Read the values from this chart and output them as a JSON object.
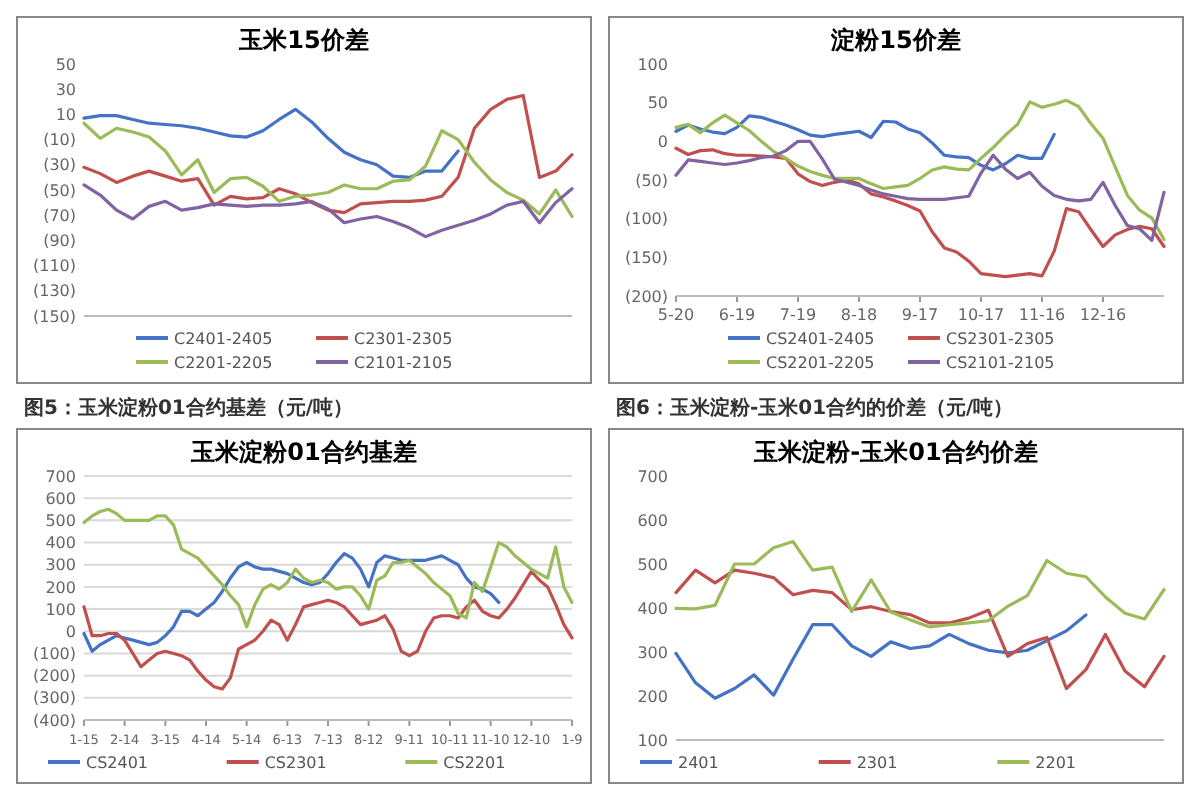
{
  "chart_data": [
    {
      "type": "line",
      "title": "玉米15价差",
      "categories": [
        null,
        null,
        null,
        null,
        null,
        null,
        null,
        null,
        null,
        null,
        null,
        null,
        null,
        null,
        null,
        null,
        null,
        null,
        null,
        null,
        null,
        null,
        null,
        null,
        null,
        null,
        null,
        null,
        null,
        null,
        null
      ],
      "ylim": [
        -150,
        50
      ],
      "tick_labels": "y",
      "legend": "bottom",
      "grid": false,
      "yticks": [
        50,
        30,
        10,
        {
          "value": -10,
          "label": "(10)"
        },
        {
          "value": -30,
          "label": "(30)"
        },
        {
          "value": -50,
          "label": "(50)"
        },
        {
          "value": -70,
          "label": "(70)"
        },
        {
          "value": -90,
          "label": "(90)"
        },
        {
          "value": -110,
          "label": "(110)"
        },
        {
          "value": -130,
          "label": "(130)"
        },
        {
          "value": -150,
          "label": "(150)"
        }
      ],
      "series": [
        {
          "name": "C2401-2405",
          "color": "#4472c4",
          "values": [
            7,
            9,
            9,
            6,
            3,
            2,
            1,
            -1,
            -4,
            -7,
            -8,
            -3,
            6,
            14,
            4,
            -9,
            -20,
            -26,
            -30,
            -39,
            -40,
            -35,
            -35,
            -19,
            null,
            null,
            null,
            null,
            null,
            null,
            null
          ]
        },
        {
          "name": "C2301-2305",
          "color": "#c0504d",
          "values": [
            -32,
            -37,
            -44,
            -39,
            -35,
            -39,
            -43,
            -41,
            -62,
            -55,
            -57,
            -56,
            -49,
            -53,
            -60,
            -66,
            -68,
            -61,
            -60,
            -59,
            -59,
            -58,
            -55,
            -40,
            -1,
            14,
            22,
            25,
            -40,
            -35,
            -22
          ]
        },
        {
          "name": "C2201-2205",
          "color": "#9bbb59",
          "values": [
            3,
            -9,
            -1,
            -4,
            -8,
            -19,
            -38,
            -26,
            -52,
            -41,
            -40,
            -47,
            -59,
            -55,
            -54,
            -52,
            -46,
            -49,
            -49,
            -43,
            -42,
            -31,
            -3,
            -10,
            -28,
            -42,
            -52,
            -58,
            -69,
            -50,
            -71
          ]
        },
        {
          "name": "C2101-2105",
          "color": "#8064a2",
          "values": [
            -46,
            -54,
            -66,
            -73,
            -63,
            -59,
            -66,
            -64,
            -61,
            -62,
            -63,
            -62,
            -62,
            -61,
            -59,
            -65,
            -76,
            -73,
            -71,
            -75,
            -80,
            -87,
            -82,
            -78,
            -74,
            -69,
            -62,
            -59,
            -76,
            -60,
            -49
          ]
        }
      ]
    },
    {
      "type": "line",
      "title": "淀粉15价差",
      "categories": [
        "5-20",
        null,
        null,
        null,
        null,
        "6-19",
        null,
        null,
        null,
        null,
        "7-19",
        null,
        null,
        null,
        null,
        "8-18",
        null,
        null,
        null,
        null,
        "9-17",
        null,
        null,
        null,
        null,
        "10-17",
        null,
        null,
        null,
        null,
        "11-16",
        null,
        null,
        null,
        null,
        "12-16",
        null,
        null,
        null,
        null,
        null
      ],
      "ylim": [
        -200,
        100
      ],
      "legend": "bottom",
      "grid": false,
      "yticks": [
        100,
        50,
        0,
        {
          "value": -50,
          "label": "(50)"
        },
        {
          "value": -100,
          "label": "(100)"
        },
        {
          "value": -150,
          "label": "(150)"
        },
        {
          "value": -200,
          "label": "(200)"
        }
      ],
      "series": [
        {
          "name": "CS2401-2405",
          "color": "#4472c4",
          "values": [
            13,
            21,
            16,
            12,
            10,
            18,
            33,
            31,
            26,
            21,
            15,
            8,
            6,
            9,
            11,
            13,
            5,
            26,
            25,
            16,
            11,
            -2,
            -18,
            -20,
            -21,
            -31,
            -37,
            -29,
            -18,
            -22,
            -22,
            9,
            null,
            null,
            null,
            null,
            null,
            null,
            null,
            null,
            null
          ]
        },
        {
          "name": "CS2301-2305",
          "color": "#c0504d",
          "values": [
            -9,
            -17,
            -12,
            -11,
            -16,
            -18,
            -18,
            -19,
            -20,
            -22,
            -42,
            -52,
            -57,
            -53,
            -50,
            -55,
            -68,
            -72,
            -77,
            -83,
            -90,
            -117,
            -138,
            -143,
            -155,
            -171,
            -173,
            -175,
            -173,
            -171,
            -174,
            -142,
            -87,
            -91,
            -114,
            -136,
            -121,
            -114,
            -110,
            -113,
            -136
          ]
        },
        {
          "name": "CS2201-2205",
          "color": "#9bbb59",
          "values": [
            18,
            22,
            11,
            24,
            34,
            24,
            14,
            0,
            -13,
            -22,
            -32,
            -39,
            -44,
            -48,
            -48,
            -48,
            -55,
            -61,
            -59,
            -57,
            -48,
            -37,
            -33,
            -36,
            -37,
            -22,
            -8,
            8,
            22,
            51,
            44,
            48,
            53,
            45,
            23,
            4,
            -33,
            -70,
            -89,
            -99,
            -127
          ]
        },
        {
          "name": "CS2101-2105",
          "color": "#8064a2",
          "values": [
            -44,
            -24,
            -26,
            -28,
            -30,
            -28,
            -25,
            -21,
            -19,
            -12,
            0,
            0,
            -23,
            -49,
            -53,
            -57,
            -63,
            -68,
            -71,
            -74,
            -75,
            -75,
            -75,
            -73,
            -71,
            -41,
            -18,
            -36,
            -48,
            -40,
            -58,
            -70,
            -75,
            -77,
            -75,
            -53,
            -83,
            -109,
            -113,
            -128,
            -66
          ]
        }
      ]
    },
    {
      "type": "line",
      "title": "玉米淀粉01合约基差",
      "annotations": [
        "图5：玉米淀粉01合约基差（元/吨）"
      ],
      "categories": [
        "1-15",
        null,
        null,
        null,
        null,
        "2-14",
        null,
        null,
        null,
        null,
        "3-15",
        null,
        null,
        null,
        null,
        "4-14",
        null,
        null,
        null,
        null,
        "5-14",
        null,
        null,
        null,
        null,
        "6-13",
        null,
        null,
        null,
        null,
        "7-13",
        null,
        null,
        null,
        null,
        "8-12",
        null,
        null,
        null,
        null,
        "9-11",
        null,
        null,
        null,
        null,
        "10-11",
        null,
        null,
        null,
        null,
        "11-10",
        null,
        null,
        null,
        null,
        "12-10",
        null,
        null,
        null,
        null,
        "1-9"
      ],
      "ylim": [
        -400,
        700
      ],
      "legend": "bottom",
      "grid": "y",
      "yticks": [
        700,
        600,
        500,
        400,
        300,
        200,
        100,
        0,
        {
          "value": -100,
          "label": "(100)"
        },
        {
          "value": -200,
          "label": "(200)"
        },
        {
          "value": -300,
          "label": "(300)"
        },
        {
          "value": -400,
          "label": "(400)"
        }
      ],
      "series": [
        {
          "name": "CS2401",
          "color": "#4472c4",
          "values": [
            -10,
            -90,
            -60,
            -40,
            -20,
            -30,
            -40,
            -50,
            -60,
            -50,
            -20,
            20,
            90,
            90,
            70,
            100,
            130,
            180,
            240,
            290,
            310,
            290,
            280,
            280,
            270,
            260,
            240,
            220,
            210,
            220,
            260,
            310,
            350,
            330,
            280,
            200,
            310,
            340,
            330,
            320,
            320,
            320,
            320,
            330,
            340,
            320,
            300,
            240,
            200,
            190,
            170,
            130,
            null,
            null,
            null,
            null,
            null,
            null,
            null,
            null,
            null
          ]
        },
        {
          "name": "CS2301",
          "color": "#c0504d",
          "values": [
            110,
            -20,
            -20,
            -10,
            -10,
            -40,
            -100,
            -160,
            -130,
            -100,
            -90,
            -100,
            -110,
            -130,
            -180,
            -220,
            -250,
            -260,
            -210,
            -80,
            -60,
            -40,
            0,
            50,
            30,
            -40,
            30,
            110,
            120,
            130,
            140,
            130,
            110,
            70,
            30,
            40,
            50,
            70,
            10,
            -90,
            -110,
            -90,
            0,
            60,
            70,
            70,
            60,
            110,
            140,
            90,
            70,
            60,
            100,
            150,
            210,
            270,
            230,
            200,
            120,
            30,
            -30
          ]
        },
        {
          "name": "CS2201",
          "color": "#9bbb59",
          "values": [
            490,
            520,
            540,
            550,
            530,
            500,
            500,
            500,
            500,
            520,
            520,
            480,
            370,
            350,
            330,
            290,
            250,
            210,
            160,
            120,
            20,
            120,
            190,
            210,
            190,
            220,
            280,
            240,
            220,
            230,
            220,
            190,
            200,
            200,
            160,
            100,
            230,
            250,
            310,
            310,
            320,
            290,
            260,
            220,
            190,
            160,
            80,
            60,
            220,
            180,
            290,
            400,
            380,
            340,
            310,
            280,
            260,
            240,
            380,
            200,
            130
          ]
        }
      ]
    },
    {
      "type": "line",
      "title": "玉米淀粉-玉米01合约价差",
      "annotations": [
        "图6：玉米淀粉-玉米01合约的价差（元/吨）"
      ],
      "categories": [
        null,
        null,
        null,
        null,
        null,
        null,
        null,
        null,
        null,
        null,
        null,
        null,
        null,
        null,
        null,
        null,
        null,
        null,
        null,
        null,
        null,
        null,
        null,
        null,
        null,
        null
      ],
      "ylim": [
        100,
        700
      ],
      "tick_labels": "y",
      "legend": "bottom",
      "grid": false,
      "yticks": [
        700,
        600,
        500,
        400,
        300,
        200,
        100
      ],
      "series": [
        {
          "name": "2401",
          "color": "#4472c4",
          "values": [
            297,
            230,
            195,
            217,
            248,
            202,
            284,
            362,
            362,
            314,
            290,
            323,
            308,
            314,
            340,
            319,
            304,
            298,
            304,
            326,
            348,
            384,
            null,
            null,
            null,
            null
          ]
        },
        {
          "name": "2301",
          "color": "#c0504d",
          "values": [
            435,
            486,
            457,
            486,
            479,
            469,
            430,
            440,
            435,
            396,
            403,
            392,
            385,
            366,
            366,
            377,
            395,
            290,
            319,
            333,
            217,
            260,
            340,
            257,
            221,
            290
          ]
        },
        {
          "name": "2201",
          "color": "#9bbb59",
          "values": [
            399,
            398,
            406,
            500,
            500,
            537,
            551,
            486,
            493,
            392,
            464,
            391,
            373,
            357,
            362,
            366,
            371,
            404,
            428,
            508,
            479,
            471,
            425,
            388,
            375,
            442
          ]
        }
      ]
    }
  ]
}
